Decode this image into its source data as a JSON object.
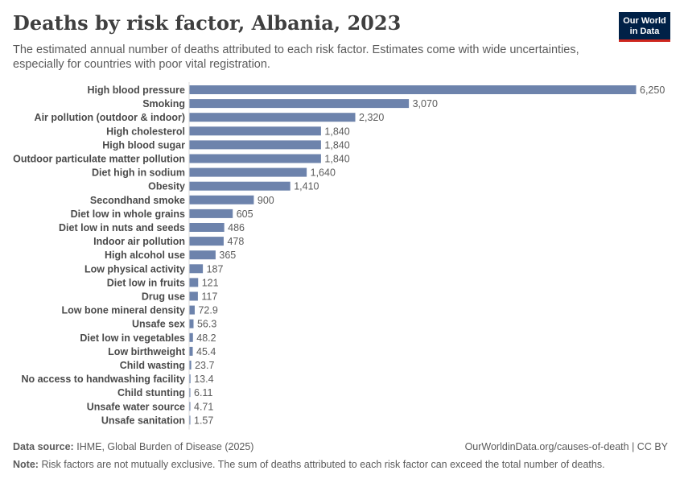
{
  "logo": {
    "line1": "Our World",
    "line2": "in Data"
  },
  "footer": {
    "source_label": "Data source:",
    "source_text": "IHME, Global Burden of Disease (2025)",
    "url": "OurWorldinData.org/causes-of-death | CC BY",
    "note_label": "Note:",
    "note_text": "Risk factors are not mutually exclusive. The sum of deaths attributed to each risk factor can exceed the total number of deaths."
  },
  "chart_data": {
    "type": "bar",
    "orientation": "horizontal",
    "title": "Deaths by risk factor, Albania, 2023",
    "subtitle": "The estimated annual number of deaths attributed to each risk factor. Estimates come with wide uncertainties, especially for countries with poor vital registration.",
    "bar_color": "#6d83ac",
    "categories": [
      "High blood pressure",
      "Smoking",
      "Air pollution (outdoor & indoor)",
      "High cholesterol",
      "High blood sugar",
      "Outdoor particulate matter pollution",
      "Diet high in sodium",
      "Obesity",
      "Secondhand smoke",
      "Diet low in whole grains",
      "Diet low in nuts and seeds",
      "Indoor air pollution",
      "High alcohol use",
      "Low physical activity",
      "Diet low in fruits",
      "Drug use",
      "Low bone mineral density",
      "Unsafe sex",
      "Diet low in vegetables",
      "Low birthweight",
      "Child wasting",
      "No access to handwashing facility",
      "Child stunting",
      "Unsafe water source",
      "Unsafe sanitation"
    ],
    "values": [
      6250,
      3070,
      2320,
      1840,
      1840,
      1840,
      1640,
      1410,
      900,
      605,
      486,
      478,
      365,
      187,
      121,
      117,
      72.9,
      56.3,
      48.2,
      45.4,
      23.7,
      13.4,
      6.11,
      4.71,
      1.57
    ],
    "value_labels": [
      "6,250",
      "3,070",
      "2,320",
      "1,840",
      "1,840",
      "1,840",
      "1,640",
      "1,410",
      "900",
      "605",
      "486",
      "478",
      "365",
      "187",
      "121",
      "117",
      "72.9",
      "56.3",
      "48.2",
      "45.4",
      "23.7",
      "13.4",
      "6.11",
      "4.71",
      "1.57"
    ],
    "xlim": [
      0,
      6250
    ]
  }
}
